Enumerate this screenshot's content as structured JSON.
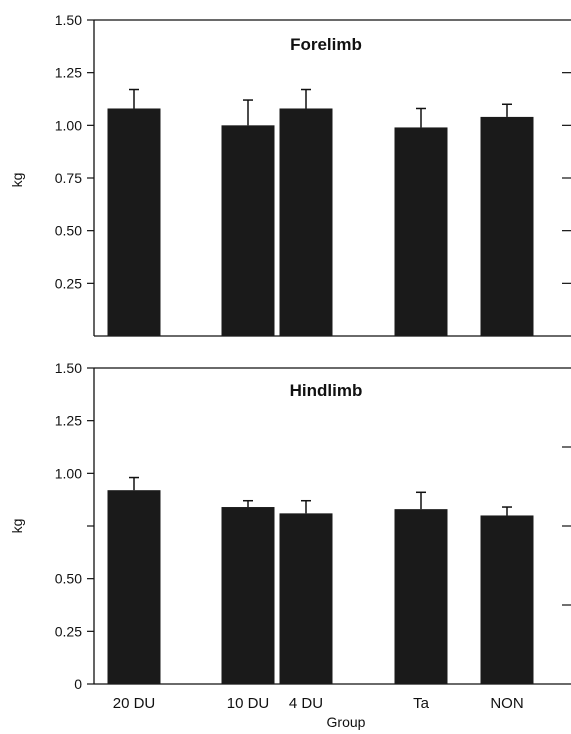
{
  "chart_data": [
    {
      "type": "bar",
      "title": "Forelimb",
      "ylabel": "kg",
      "xlabel": "",
      "ylim": [
        0,
        1.5
      ],
      "yticks": [
        {
          "value": 0.25,
          "label": "0.25"
        },
        {
          "value": 0.5,
          "label": "0.50"
        },
        {
          "value": 0.75,
          "label": "0.75"
        },
        {
          "value": 1.0,
          "label": "1.00"
        },
        {
          "value": 1.25,
          "label": "1.25"
        },
        {
          "value": 1.5,
          "label": "1.50"
        }
      ],
      "right_ticks": [
        0.25,
        0.5,
        0.75,
        1.0,
        1.25
      ],
      "categories": [
        "20 DU",
        "10 DU",
        "4 DU",
        "Ta",
        "NON"
      ],
      "values": [
        1.08,
        1.0,
        1.08,
        0.99,
        1.04
      ],
      "errors": [
        0.09,
        0.12,
        0.09,
        0.09,
        0.06
      ],
      "show_category_labels": false,
      "bar_color": "#1a1a1a"
    },
    {
      "type": "bar",
      "title": "Hindlimb",
      "ylabel": "kg",
      "xlabel": "Group",
      "ylim": [
        0,
        1.5
      ],
      "yticks": [
        {
          "value": 0,
          "label": "0"
        },
        {
          "value": 0.25,
          "label": "0.25"
        },
        {
          "value": 0.5,
          "label": "0.50"
        },
        {
          "value": 1.0,
          "label": "1.00"
        },
        {
          "value": 1.25,
          "label": "1.25"
        },
        {
          "value": 1.5,
          "label": "1.50"
        }
      ],
      "extra_left_ticks": [
        0.75
      ],
      "right_ticks": [
        0.375,
        0.75,
        1.125
      ],
      "categories": [
        "20 DU",
        "10 DU",
        "4 DU",
        "Ta",
        "NON"
      ],
      "values": [
        0.92,
        0.84,
        0.81,
        0.83,
        0.8
      ],
      "errors": [
        0.06,
        0.03,
        0.06,
        0.08,
        0.04
      ],
      "show_category_labels": true,
      "bar_color": "#1a1a1a"
    }
  ]
}
